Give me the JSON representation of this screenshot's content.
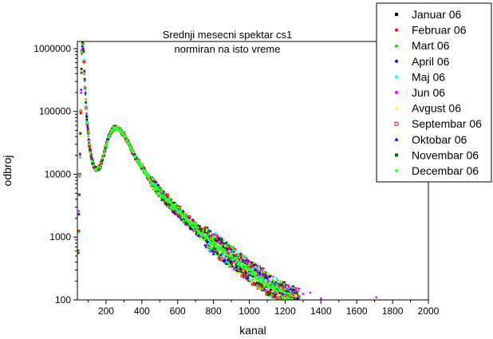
{
  "chart_data": {
    "type": "scatter",
    "title": "Srednji mesecni spektar cs1",
    "subtitle": "normiran na isto vreme",
    "xlabel": "kanal",
    "ylabel": "odbroj",
    "xlim": [
      40,
      2000
    ],
    "ylim": [
      100,
      1300000
    ],
    "yscale": "log",
    "grid": false,
    "legend_position": "top-right",
    "x_ticks": [
      200,
      400,
      600,
      800,
      1000,
      1200,
      1400,
      1600,
      1800,
      2000
    ],
    "x_tick_labels": [
      "200",
      "400",
      "600",
      "800",
      "1000",
      "1200",
      "1400",
      "1600",
      "1800",
      "2000"
    ],
    "y_ticks": [
      100,
      1000,
      10000,
      100000,
      1000000
    ],
    "y_tick_labels": [
      "100",
      "1000",
      "10000",
      "100000",
      "1000000"
    ],
    "spectrum_shape": {
      "x": [
        45,
        55,
        60,
        65,
        70,
        75,
        80,
        90,
        100,
        110,
        120,
        130,
        140,
        150,
        160,
        170,
        180,
        190,
        200,
        210,
        220,
        230,
        240,
        250,
        260,
        270,
        280,
        290,
        300,
        320,
        340,
        360,
        380,
        400,
        450,
        500,
        550,
        600,
        650,
        700,
        750,
        800,
        850,
        900,
        950,
        1000,
        1050,
        1100,
        1150,
        1200,
        1250,
        1280
      ],
      "y": [
        600,
        20000,
        150000,
        900000,
        1300000,
        900000,
        350000,
        100000,
        45000,
        25000,
        17000,
        14000,
        12500,
        12000,
        12500,
        14000,
        17000,
        22000,
        28000,
        36000,
        43000,
        49000,
        53000,
        55000,
        55000,
        53000,
        50000,
        46000,
        42000,
        33000,
        26000,
        20000,
        16000,
        13000,
        8000,
        5200,
        3600,
        2600,
        1900,
        1400,
        1050,
        800,
        620,
        480,
        370,
        290,
        230,
        180,
        150,
        125,
        108,
        100
      ]
    },
    "outliers": {
      "x": [
        920,
        1050,
        1100,
        1160,
        1220,
        1260,
        1300,
        1340,
        1400,
        1710,
        1080,
        990,
        880
      ],
      "y": [
        420,
        250,
        210,
        180,
        160,
        140,
        125,
        130,
        105,
        110,
        320,
        400,
        560
      ]
    },
    "series": [
      {
        "name": "Januar 06",
        "color": "#000000",
        "marker": "square"
      },
      {
        "name": "Februar 06",
        "color": "#ff0000",
        "marker": "circle"
      },
      {
        "name": "Mart 06",
        "color": "#00cc00",
        "marker": "triangle"
      },
      {
        "name": "April 06",
        "color": "#0000ff",
        "marker": "diamond"
      },
      {
        "name": "Maj 06",
        "color": "#00ffff",
        "marker": "diamond"
      },
      {
        "name": "Jun 06",
        "color": "#ff00ff",
        "marker": "circle"
      },
      {
        "name": "Avgust 06",
        "color": "#ffff00",
        "marker": "triangle"
      },
      {
        "name": "Septembar 06",
        "color": "#ff0000",
        "marker": "open-square"
      },
      {
        "name": "Oktobar 06",
        "color": "#0000ff",
        "marker": "triangle"
      },
      {
        "name": "Novembar 06",
        "color": "#006600",
        "marker": "square"
      },
      {
        "name": "Decembar 06",
        "color": "#33ff33",
        "marker": "diamond"
      }
    ]
  }
}
